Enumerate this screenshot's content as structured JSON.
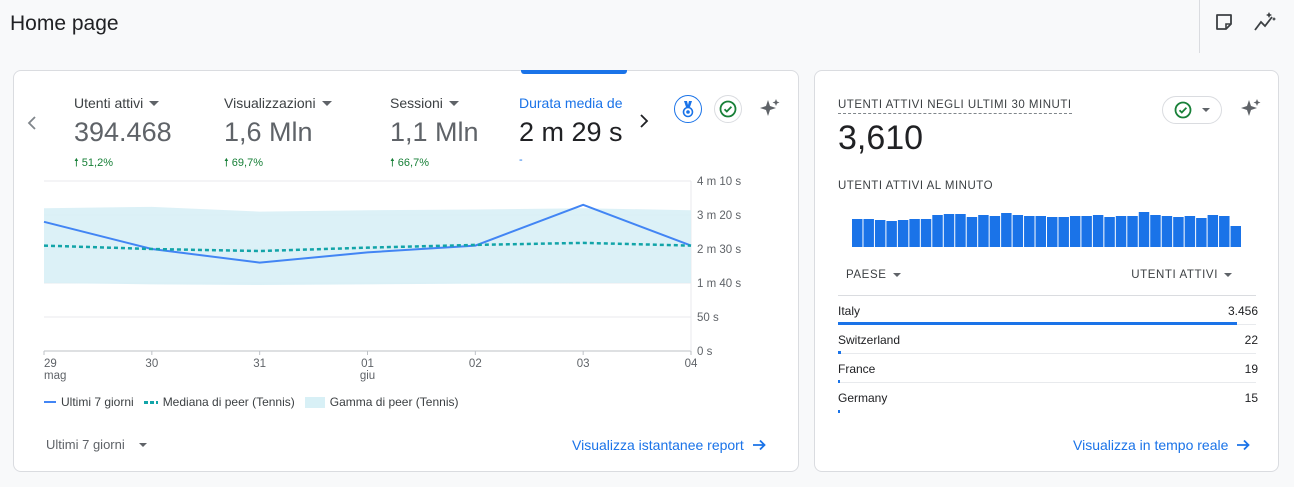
{
  "page": {
    "title": "Home page"
  },
  "toolbar": {
    "icons": [
      "note-icon",
      "insights-icon"
    ]
  },
  "overview": {
    "metrics": [
      {
        "label": "Utenti attivi",
        "value": "394.468",
        "change": "51,2%",
        "direction": "up",
        "active": false
      },
      {
        "label": "Visualizzazioni",
        "value": "1,6 Mln",
        "change": "69,7%",
        "direction": "up",
        "active": false
      },
      {
        "label": "Sessioni",
        "value": "1,1 Mln",
        "change": "66,7%",
        "direction": "up",
        "active": false
      },
      {
        "label": "Durata media de",
        "value": "2 m 29 s",
        "change": "-",
        "direction": "none",
        "active": true
      }
    ],
    "date_range": "Ultimi 7 giorni",
    "link": "Visualizza istantanee report",
    "colors": {
      "accent": "#1a73e8",
      "positive": "#188038",
      "line": "#4285f4",
      "median": "#12a4a8",
      "range": "#d8f0f6"
    }
  },
  "chart_data": {
    "type": "line",
    "x": [
      "29 mag",
      "30",
      "31",
      "01 giu",
      "02",
      "03",
      "04"
    ],
    "x_tick_labels": [
      [
        "29",
        "mag"
      ],
      [
        "30"
      ],
      [
        "31"
      ],
      [
        "01",
        "giu"
      ],
      [
        "02"
      ],
      [
        "03"
      ],
      [
        "04"
      ]
    ],
    "y_tick_labels": [
      "4 m 10 s",
      "3 m 20 s",
      "2 m 30 s",
      "1 m 40 s",
      "50 s",
      "0 s"
    ],
    "y_unit": "seconds",
    "ylim": [
      0,
      250
    ],
    "series": [
      {
        "name": "Ultimi 7 giorni",
        "values": [
          190,
          150,
          130,
          145,
          155,
          215,
          155
        ],
        "style": "solid"
      },
      {
        "name": "Mediana di peer (Tennis)",
        "values": [
          155,
          150,
          147,
          152,
          156,
          159,
          155
        ],
        "style": "dashed"
      }
    ],
    "band": {
      "name": "Gamma di peer (Tennis)",
      "lower": [
        100,
        98,
        97,
        98,
        99,
        100,
        100
      ],
      "upper": [
        210,
        212,
        205,
        207,
        208,
        210,
        207
      ]
    },
    "grid": true,
    "legend_position": "bottom-left"
  },
  "realtime": {
    "title": "UTENTI ATTIVI NEGLI ULTIMI 30 MINUTI",
    "value": "3,610",
    "subtitle": "UTENTI ATTIVI AL MINUTO",
    "per_minute": [
      28,
      28,
      27,
      26,
      27,
      28,
      28,
      32,
      33,
      33,
      30,
      32,
      31,
      34,
      32,
      31,
      31,
      30,
      30,
      31,
      31,
      32,
      30,
      31,
      31,
      35,
      32,
      31,
      30,
      31,
      29,
      32,
      31,
      21
    ],
    "columns": {
      "country": "PAESE",
      "users": "UTENTI ATTIVI"
    },
    "rows": [
      {
        "country": "Italy",
        "users": "3.456",
        "share": 0.955
      },
      {
        "country": "Switzerland",
        "users": "22",
        "share": 0.006
      },
      {
        "country": "France",
        "users": "19",
        "share": 0.005
      },
      {
        "country": "Germany",
        "users": "15",
        "share": 0.004
      }
    ],
    "link": "Visualizza in tempo reale"
  }
}
